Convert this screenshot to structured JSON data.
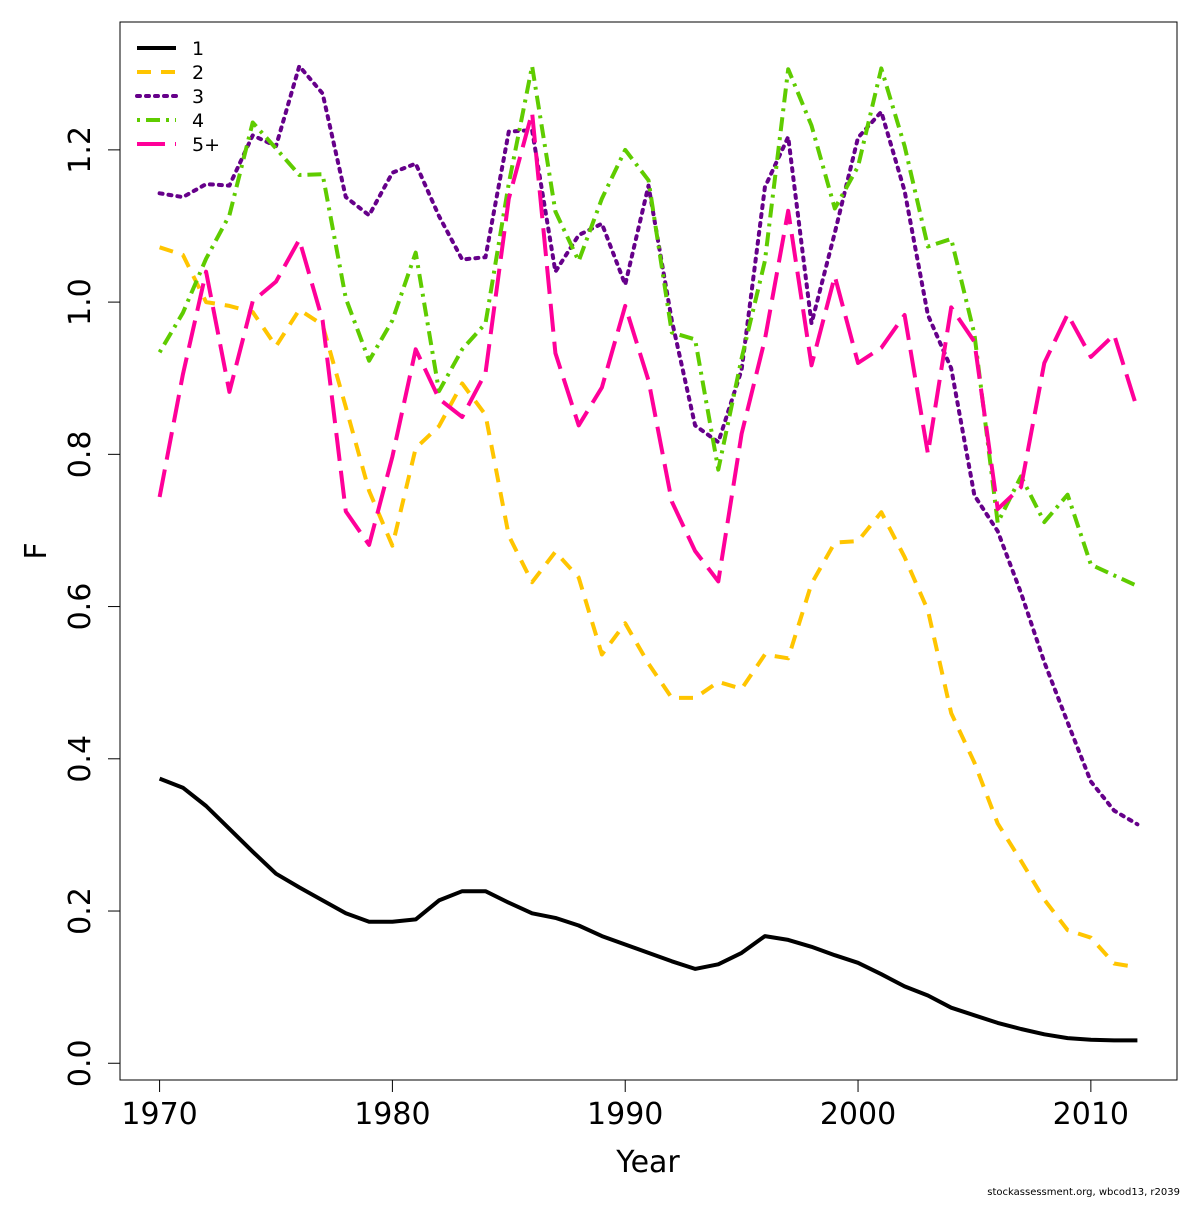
{
  "chart_data": {
    "type": "line",
    "title": "",
    "xlabel": "Year",
    "ylabel": "F",
    "xlim": [
      1968.3,
      2013.7
    ],
    "ylim": [
      -0.022,
      1.368
    ],
    "x_ticks": [
      1970,
      1980,
      1990,
      2000,
      2010
    ],
    "y_ticks": [
      0.0,
      0.2,
      0.4,
      0.6,
      0.8,
      1.0,
      1.2
    ],
    "y_tick_labels": [
      "0.0",
      "0.2",
      "0.4",
      "0.6",
      "0.8",
      "1.0",
      "1.2"
    ],
    "grid": false,
    "legend_position": "top-left",
    "x": [
      1970,
      1971,
      1972,
      1973,
      1974,
      1975,
      1976,
      1977,
      1978,
      1979,
      1980,
      1981,
      1982,
      1983,
      1984,
      1985,
      1986,
      1987,
      1988,
      1989,
      1990,
      1991,
      1992,
      1993,
      1994,
      1995,
      1996,
      1997,
      1998,
      1999,
      2000,
      2001,
      2002,
      2003,
      2004,
      2005,
      2006,
      2007,
      2008,
      2009,
      2010,
      2011,
      2012
    ],
    "series": [
      {
        "name": "1",
        "color": "#000000",
        "dash": "solid",
        "values": [
          0.374,
          0.362,
          0.338,
          0.308,
          0.278,
          0.249,
          0.231,
          0.214,
          0.197,
          0.186,
          0.186,
          0.189,
          0.214,
          0.226,
          0.226,
          0.211,
          0.197,
          0.191,
          0.181,
          0.167,
          0.156,
          0.145,
          0.134,
          0.124,
          0.13,
          0.145,
          0.167,
          0.162,
          0.153,
          0.142,
          0.132,
          0.117,
          0.101,
          0.089,
          0.073,
          0.063,
          0.053,
          0.045,
          0.038,
          0.033,
          0.031,
          0.03,
          0.03
        ]
      },
      {
        "name": "2",
        "color": "#FFC500",
        "dash": "dashed",
        "values": [
          1.072,
          1.062,
          1.0,
          0.995,
          0.987,
          0.942,
          0.99,
          0.97,
          0.862,
          0.752,
          0.68,
          0.808,
          0.837,
          0.893,
          0.852,
          0.693,
          0.632,
          0.672,
          0.638,
          0.537,
          0.578,
          0.525,
          0.48,
          0.48,
          0.501,
          0.492,
          0.537,
          0.532,
          0.63,
          0.684,
          0.686,
          0.724,
          0.665,
          0.595,
          0.46,
          0.395,
          0.315,
          0.266,
          0.215,
          0.175,
          0.165,
          0.131,
          0.126
        ]
      },
      {
        "name": "3",
        "color": "#66008A",
        "dash": "dotted",
        "values": [
          1.143,
          1.138,
          1.155,
          1.153,
          1.219,
          1.205,
          1.31,
          1.274,
          1.138,
          1.114,
          1.17,
          1.182,
          1.113,
          1.056,
          1.059,
          1.224,
          1.226,
          1.04,
          1.088,
          1.103,
          1.023,
          1.153,
          0.976,
          0.838,
          0.816,
          0.911,
          1.151,
          1.217,
          0.972,
          1.091,
          1.216,
          1.25,
          1.146,
          0.983,
          0.913,
          0.746,
          0.699,
          0.618,
          0.527,
          0.448,
          0.37,
          0.332,
          0.314
        ]
      },
      {
        "name": "4",
        "color": "#5FCC00",
        "dash": "dashdot",
        "values": [
          0.934,
          0.986,
          1.057,
          1.114,
          1.236,
          1.202,
          1.167,
          1.168,
          1.005,
          0.923,
          0.976,
          1.065,
          0.883,
          0.938,
          0.972,
          1.156,
          1.31,
          1.119,
          1.054,
          1.136,
          1.2,
          1.16,
          0.96,
          0.951,
          0.78,
          0.926,
          1.054,
          1.306,
          1.232,
          1.123,
          1.178,
          1.307,
          1.205,
          1.073,
          1.083,
          0.958,
          0.71,
          0.771,
          0.711,
          0.747,
          0.655,
          0.641,
          0.627
        ]
      },
      {
        "name": "5+",
        "color": "#FF0099",
        "dash": "longdash",
        "values": [
          0.744,
          0.905,
          1.04,
          0.882,
          1.001,
          1.027,
          1.082,
          0.976,
          0.725,
          0.681,
          0.797,
          0.938,
          0.873,
          0.849,
          0.907,
          1.136,
          1.249,
          0.933,
          0.838,
          0.888,
          0.995,
          0.897,
          0.738,
          0.673,
          0.633,
          0.827,
          0.951,
          1.12,
          0.917,
          1.034,
          0.92,
          0.94,
          0.983,
          0.801,
          0.993,
          0.948,
          0.728,
          0.757,
          0.92,
          0.984,
          0.928,
          0.957,
          0.859
        ]
      }
    ]
  },
  "footer": "stockassessment.org, wbcod13, r2039"
}
